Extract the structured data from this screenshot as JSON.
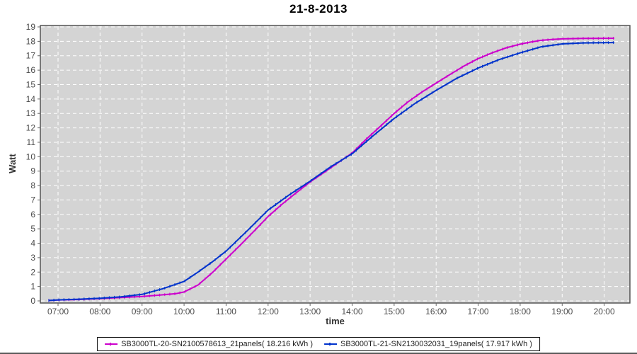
{
  "chart_data": {
    "type": "line",
    "title": "21-8-2013",
    "xlabel": "time",
    "ylabel": "Watt",
    "x_tick_labels": [
      "07:00",
      "08:00",
      "09:00",
      "10:00",
      "11:00",
      "12:00",
      "13:00",
      "14:00",
      "15:00",
      "16:00",
      "17:00",
      "18:00",
      "19:00",
      "20:00"
    ],
    "x_tick_hours": [
      7,
      8,
      9,
      10,
      11,
      12,
      13,
      14,
      15,
      16,
      17,
      18,
      19,
      20
    ],
    "y_ticks": [
      0,
      1,
      2,
      3,
      4,
      5,
      6,
      7,
      8,
      9,
      10,
      11,
      12,
      13,
      14,
      15,
      16,
      17,
      18,
      19
    ],
    "ylim": [
      0,
      19
    ],
    "grid": true,
    "legend_position": "bottom",
    "colors": {
      "plot_background": "#d4d4d4",
      "grid": "#ffffff",
      "border": "#555555",
      "tick_text": "#4a4a4a"
    },
    "series": [
      {
        "name": "SB3000TL-20-SN2100578613_21panels( 18.216 kWh )",
        "color": "#cc00cc",
        "energy_kwh": 18.216,
        "points": [
          [
            6.78,
            0.03
          ],
          [
            7.0,
            0.06
          ],
          [
            7.5,
            0.1
          ],
          [
            8.0,
            0.16
          ],
          [
            8.5,
            0.23
          ],
          [
            9.0,
            0.31
          ],
          [
            9.4,
            0.4
          ],
          [
            9.8,
            0.5
          ],
          [
            10.0,
            0.62
          ],
          [
            10.33,
            1.1
          ],
          [
            10.67,
            1.95
          ],
          [
            11.0,
            2.9
          ],
          [
            11.33,
            3.85
          ],
          [
            11.67,
            4.85
          ],
          [
            12.0,
            5.85
          ],
          [
            12.33,
            6.7
          ],
          [
            12.67,
            7.5
          ],
          [
            13.0,
            8.25
          ],
          [
            13.33,
            8.9
          ],
          [
            13.67,
            9.6
          ],
          [
            14.0,
            10.25
          ],
          [
            14.33,
            11.2
          ],
          [
            14.67,
            12.1
          ],
          [
            15.0,
            13.0
          ],
          [
            15.33,
            13.8
          ],
          [
            15.67,
            14.5
          ],
          [
            16.0,
            15.1
          ],
          [
            16.33,
            15.7
          ],
          [
            16.67,
            16.3
          ],
          [
            17.0,
            16.8
          ],
          [
            17.33,
            17.2
          ],
          [
            17.67,
            17.55
          ],
          [
            18.0,
            17.8
          ],
          [
            18.25,
            17.95
          ],
          [
            18.5,
            18.07
          ],
          [
            18.75,
            18.13
          ],
          [
            19.0,
            18.17
          ],
          [
            19.5,
            18.2
          ],
          [
            20.0,
            18.21
          ],
          [
            20.24,
            18.216
          ]
        ]
      },
      {
        "name": "SB3000TL-21-SN2130032031_19panels( 17.917 kWh )",
        "color": "#0033cc",
        "energy_kwh": 17.917,
        "points": [
          [
            6.78,
            0.03
          ],
          [
            7.0,
            0.07
          ],
          [
            7.5,
            0.12
          ],
          [
            8.0,
            0.18
          ],
          [
            8.5,
            0.28
          ],
          [
            9.0,
            0.45
          ],
          [
            9.5,
            0.85
          ],
          [
            10.0,
            1.35
          ],
          [
            10.33,
            2.0
          ],
          [
            10.67,
            2.7
          ],
          [
            11.0,
            3.45
          ],
          [
            11.5,
            4.85
          ],
          [
            12.0,
            6.3
          ],
          [
            12.5,
            7.35
          ],
          [
            13.0,
            8.3
          ],
          [
            13.5,
            9.32
          ],
          [
            14.0,
            10.2
          ],
          [
            14.5,
            11.45
          ],
          [
            15.0,
            12.65
          ],
          [
            15.5,
            13.7
          ],
          [
            16.0,
            14.6
          ],
          [
            16.5,
            15.45
          ],
          [
            17.0,
            16.15
          ],
          [
            17.5,
            16.73
          ],
          [
            18.0,
            17.2
          ],
          [
            18.5,
            17.62
          ],
          [
            19.0,
            17.82
          ],
          [
            19.5,
            17.89
          ],
          [
            20.0,
            17.91
          ],
          [
            20.24,
            17.917
          ]
        ]
      }
    ]
  }
}
